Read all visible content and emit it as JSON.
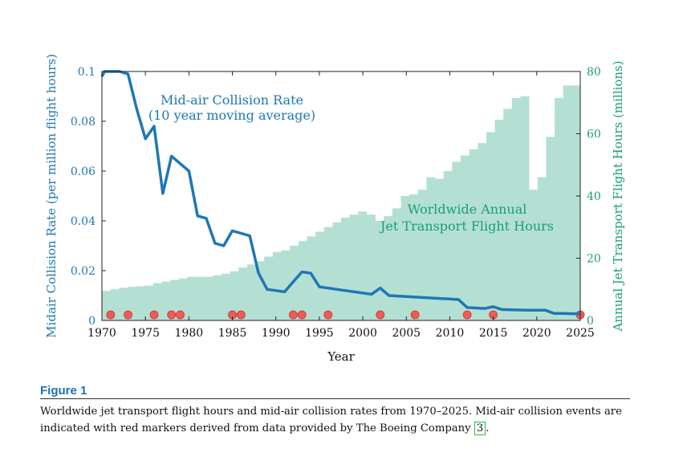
{
  "chart_data": {
    "type": "bar+line",
    "x_axis": {
      "label": "Year",
      "range": [
        1970,
        2025
      ],
      "ticks": [
        1970,
        1975,
        1980,
        1985,
        1990,
        1995,
        2000,
        2005,
        2010,
        2015,
        2020,
        2025
      ]
    },
    "y_left": {
      "label": "Midair Collision Rate (per million flight hours)",
      "range": [
        0,
        0.1
      ],
      "ticks": [
        "0",
        "0.02",
        "0.04",
        "0.06",
        "0.08",
        "0.1"
      ],
      "tick_values": [
        0,
        0.02,
        0.04,
        0.06,
        0.08,
        0.1
      ],
      "color": "#1f77b4"
    },
    "y_right": {
      "label": "Annual Jet Transport Flight Hours (millions)",
      "range": [
        0,
        80
      ],
      "ticks": [
        "0",
        "20",
        "40",
        "60",
        "80"
      ],
      "tick_values": [
        0,
        20,
        40,
        60,
        80
      ],
      "color": "#1a9e77"
    },
    "bars": {
      "name": "Worldwide Annual Jet Transport Flight Hours",
      "years": [
        1970,
        1971,
        1972,
        1973,
        1974,
        1975,
        1976,
        1977,
        1978,
        1979,
        1980,
        1981,
        1982,
        1983,
        1984,
        1985,
        1986,
        1987,
        1988,
        1989,
        1990,
        1991,
        1992,
        1993,
        1994,
        1995,
        1996,
        1997,
        1998,
        1999,
        2000,
        2001,
        2002,
        2003,
        2004,
        2005,
        2006,
        2007,
        2008,
        2009,
        2010,
        2011,
        2012,
        2013,
        2014,
        2015,
        2016,
        2017,
        2018,
        2019,
        2020,
        2021,
        2022,
        2023,
        2024,
        2025
      ],
      "values": [
        9.5,
        10,
        10.5,
        10.8,
        11,
        11.2,
        12,
        12.5,
        13,
        13.5,
        14,
        14,
        14,
        14.5,
        15,
        15.8,
        17,
        18,
        19,
        20.5,
        22,
        22.5,
        24,
        25.5,
        27,
        28.5,
        30,
        31.5,
        33,
        34,
        35,
        34,
        32,
        33.5,
        36,
        40,
        40.5,
        42,
        46,
        45.5,
        48,
        51,
        53,
        55,
        57,
        60.5,
        64.5,
        68,
        71.5,
        72,
        42,
        46,
        59,
        71.5,
        75.5,
        75.5
      ],
      "color": "#b4e0d3"
    },
    "line": {
      "name": "Mid-air Collision Rate (10 year moving average)",
      "label_line1": "Mid-air Collision Rate",
      "label_line2": "(10 year moving average)",
      "years": [
        1970,
        1970.3,
        1971,
        1972,
        1973,
        1974,
        1975,
        1976,
        1977,
        1978,
        1979,
        1980,
        1981,
        1982,
        1983,
        1984,
        1985,
        1986,
        1987,
        1988,
        1989,
        1990,
        1991,
        1992,
        1993,
        1994,
        1995,
        1996,
        1997,
        1998,
        1999,
        2000,
        2001,
        2002,
        2003,
        2004,
        2005,
        2006,
        2007,
        2008,
        2009,
        2010,
        2011,
        2012,
        2013,
        2014,
        2015,
        2016,
        2017,
        2018,
        2019,
        2020,
        2021,
        2022,
        2023,
        2024,
        2025
      ],
      "values": [
        0.098,
        0.1,
        0.1,
        0.1,
        0.099,
        0.085,
        0.073,
        0.078,
        0.051,
        0.066,
        0.063,
        0.06,
        0.042,
        0.041,
        0.031,
        0.03,
        0.036,
        0.035,
        0.034,
        0.019,
        0.0125,
        0.012,
        0.0115,
        0.0155,
        0.0195,
        0.019,
        0.0135,
        0.013,
        0.0125,
        0.012,
        0.0115,
        0.011,
        0.0105,
        0.013,
        0.01,
        0.0098,
        0.0096,
        0.0094,
        0.0092,
        0.009,
        0.0088,
        0.0086,
        0.0084,
        0.0052,
        0.005,
        0.0048,
        0.0055,
        0.0044,
        0.0043,
        0.0042,
        0.0041,
        0.0041,
        0.0041,
        0.0028,
        0.0028,
        0.0027,
        0.0027
      ],
      "color": "#1f77b4"
    },
    "events": {
      "name": "Mid-air collision events",
      "years": [
        1971,
        1973,
        1976,
        1978,
        1979,
        1985,
        1986,
        1992,
        1993,
        1996,
        2002,
        2006,
        2012,
        2015,
        2025
      ],
      "color": "#f05a5a"
    },
    "annotations": {
      "bars_line1": "Worldwide Annual",
      "bars_line2": "Jet Transport Flight Hours"
    }
  },
  "figure": {
    "label": "Figure 1",
    "caption_text": "Worldwide jet transport flight hours and mid-air collision rates from 1970–2025. Mid-air collision events are indicated with red markers derived from data provided by The Boeing Company ",
    "ref": "3",
    "caption_end": "."
  }
}
